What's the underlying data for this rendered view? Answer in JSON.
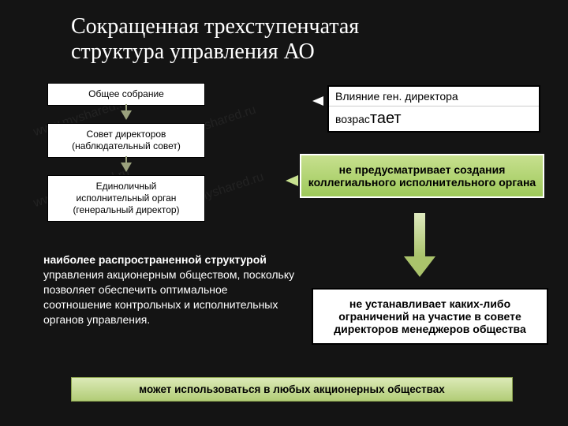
{
  "title_line1": "Сокращенная трехступенчатая",
  "title_line2": "структура управления АО",
  "flow": {
    "node1": "Общее собрание",
    "node2_l1": "Совет директоров",
    "node2_l2": "(наблюдательный совет)",
    "node3_l1": "Единоличный",
    "node3_l2": "исполнительный орган",
    "node3_l3": "(генеральный директор)"
  },
  "callout1": {
    "line1": "Влияние ген. директора",
    "line2_a": "возрас",
    "line2_b": "тает"
  },
  "callout2": "не предусматривает создания коллегиального исполнительного органа",
  "paragraph": {
    "lead": "наиболее распространенной структурой",
    "rest": " управления акционерным обществом, поскольку позволяет обеспечить оптимальное соотношение контрольных и исполнительных органов управления."
  },
  "callout3": "не устанавливает каких-либо ограничений на участие в совете директоров менеджеров общества",
  "bottom": "может использоваться в любых акционерных обществах",
  "colors": {
    "bg": "#141414",
    "accent_light": "#dceab7",
    "accent_dark": "#9ec95a",
    "arrow": "#9aa17d",
    "white": "#ffffff",
    "black": "#000000"
  },
  "watermark": "www.myshared.ru"
}
